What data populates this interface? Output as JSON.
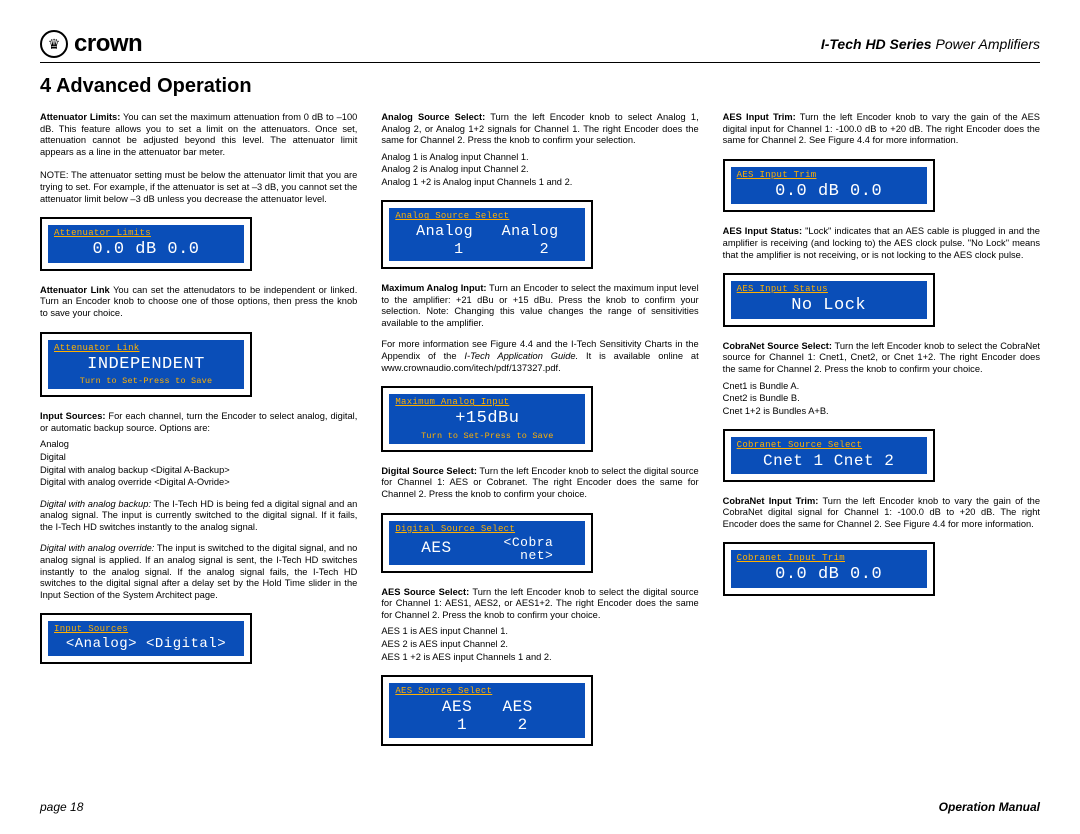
{
  "header": {
    "brand": "crown",
    "series_bold": "I-Tech HD Series",
    "series_rest": " Power Amplifiers"
  },
  "section_title": "4 Advanced Operation",
  "col1": {
    "p1_lead": "Attenuator Limits:",
    "p1_body": " You can set the maximum attenuation from 0 dB to –100 dB. This feature allows you to set a limit on the attenuators. Once set, attenuation cannot be adjusted beyond this level. The attenuator limit appears as a line in the attenuator bar meter.",
    "p2": "NOTE: The attenuator setting must be below the attenuator limit that you are trying to set. For example, if the attenuator is set at –3 dB, you cannot set the attenuator limit below –3 dB unless you decrease the attenuator level.",
    "lcd1_title": "Attenuator Limits",
    "lcd1_main": "0.0   dB   0.0",
    "p3_lead": "Attenuator Link",
    "p3_body": " You can set the attenudators to be independent or linked. Turn an Encoder knob to choose one of those options, then press the knob to save your choice.",
    "lcd2_title": "Attenuator Link",
    "lcd2_main": "INDEPENDENT",
    "lcd2_sub": "Turn to Set-Press to Save",
    "p4_lead": "Input Sources:",
    "p4_body": " For each channel, turn the Encoder to select analog, digital, or automatic backup source. Options are:",
    "opt1": "Analog",
    "opt2": "Digital",
    "opt3": "Digital with analog backup   <Digital A-Backup>",
    "opt4": "Digital with analog override <Digital A-Ovride>",
    "p5_lead": "Digital with analog backup:",
    "p5_body": " The I-Tech HD is being fed a digital signal and an analog signal. The input is currently switched to the digital signal. If it fails, the I-Tech HD switches instantly to the analog signal.",
    "p6_lead": "Digital with analog override:",
    "p6_body": " The input is switched to the digital signal, and no analog signal is applied. If an analog signal is sent, the I-Tech HD switches instantly to the analog signal. If the analog signal fails, the I-Tech HD switches to the digital signal after a delay set by the Hold Time slider in the Input Section of the System Architect  page.",
    "lcd3_title": "Input Sources",
    "lcd3_main": "<Analog>   <Digital>"
  },
  "col2": {
    "p1_lead": "Analog Source Select:",
    "p1_body": " Turn the left Encoder knob to select Analog 1, Analog 2, or Analog 1+2 signals for Channel 1. The right Encoder does the same for Channel 2. Press the knob to confirm your selection.",
    "p1_l1": "Analog 1 is Analog input Channel 1.",
    "p1_l2": "Analog 2 is Analog input Channel 2.",
    "p1_l3": "Analog 1 +2 is Analog input Channels 1 and 2.",
    "lcd1_title": "Analog Source Select",
    "lcd1_main": "Analog   Analog\n   1        2",
    "p2_lead": "Maximum Analog Input:",
    "p2_body": " Turn an Encoder to select the maximum input level to the amplifier: +21 dBu or +15 dBu. Press the knob to confirm your selection. Note: Changing this value changes the range of sensitivities available to the amplifier.",
    "p3": "For more information see Figure 4.4 and the I-Tech Sensitivity Charts in the Appendix of the ",
    "p3_italic": "I-Tech Application Guide.",
    "p3_tail": " It is available online at www.crownaudio.com/itech/pdf/137327.pdf.",
    "lcd2_title": "Maximum Analog Input",
    "lcd2_main": "+15dBu",
    "lcd2_sub": "Turn to Set-Press to Save",
    "p4_lead": "Digital Source Select:",
    "p4_body": " Turn the left Encoder knob to select the digital source for Channel 1: AES or Cobranet. The right Encoder does the same for Channel 2. Press the knob to confirm your choice.",
    "lcd3_title": "Digital Source Select",
    "lcd3_main_left": "AES",
    "lcd3_main_right": "<Cobra\n  net>",
    "p5_lead": "AES Source Select:",
    "p5_body": " Turn the left Encoder knob to select the digital source for Channel 1: AES1, AES2, or AES1+2. The right Encoder does the same for Channel 2. Press the knob to confirm your choice.",
    "p5_l1": "AES 1 is AES input Channel 1.",
    "p5_l2": "AES 2 is AES input Channel 2.",
    "p5_l3": "AES 1 +2 is AES input Channels 1 and 2.",
    "lcd4_title": "AES Source Select",
    "lcd4_main": "AES   AES\n 1     2"
  },
  "col3": {
    "p1_lead": "AES Input Trim:",
    "p1_body": " Turn the left Encoder knob to vary the gain of the AES digital input for Channel 1: -100.0 dB to +20 dB. The right Encoder does the same for Channel 2. See Figure 4.4 for more information.",
    "lcd1_title": "AES Input Trim",
    "lcd1_main": "0.0   dB   0.0",
    "p2_lead": "AES Input Status:",
    "p2_body": " \"Lock\" indicates that an AES cable is plugged in and the amplifier is receiving (and locking to) the AES clock pulse. \"No Lock\" means that the amplifier is not receiving, or is not locking to the AES clock pulse.",
    "lcd2_title": "AES Input Status",
    "lcd2_main": "No Lock",
    "p3_lead": "CobraNet Source Select:",
    "p3_body": " Turn the left Encoder knob to select the CobraNet source for Channel 1: Cnet1, Cnet2, or Cnet 1+2. The right Encoder does the same for Channel 2. Press the knob to confirm your choice.",
    "p3_l1": "Cnet1 is Bundle A.",
    "p3_l2": "Cnet2 is Bundle B.",
    "p3_l3": "Cnet 1+2 is Bundles A+B.",
    "lcd3_title": "Cobranet Source Select",
    "lcd3_main": "Cnet 1    Cnet 2",
    "p4_lead": "CobraNet  Input Trim:",
    "p4_body": " Turn the left Encoder knob to vary the gain of the CobraNet digital signal for Channel 1: -100.0 dB to +20 dB. The right Encoder does the same for Channel 2.  See Figure 4.4 for more information.",
    "lcd4_title": "Cobranet Input Trim",
    "lcd4_main": "0.0   dB   0.0"
  },
  "footer": {
    "left": "page 18",
    "right": "Operation Manual"
  },
  "colors": {
    "lcd_bg": "#0a4eb8",
    "lcd_accent": "#ffb000",
    "lcd_text": "#ffffff"
  }
}
